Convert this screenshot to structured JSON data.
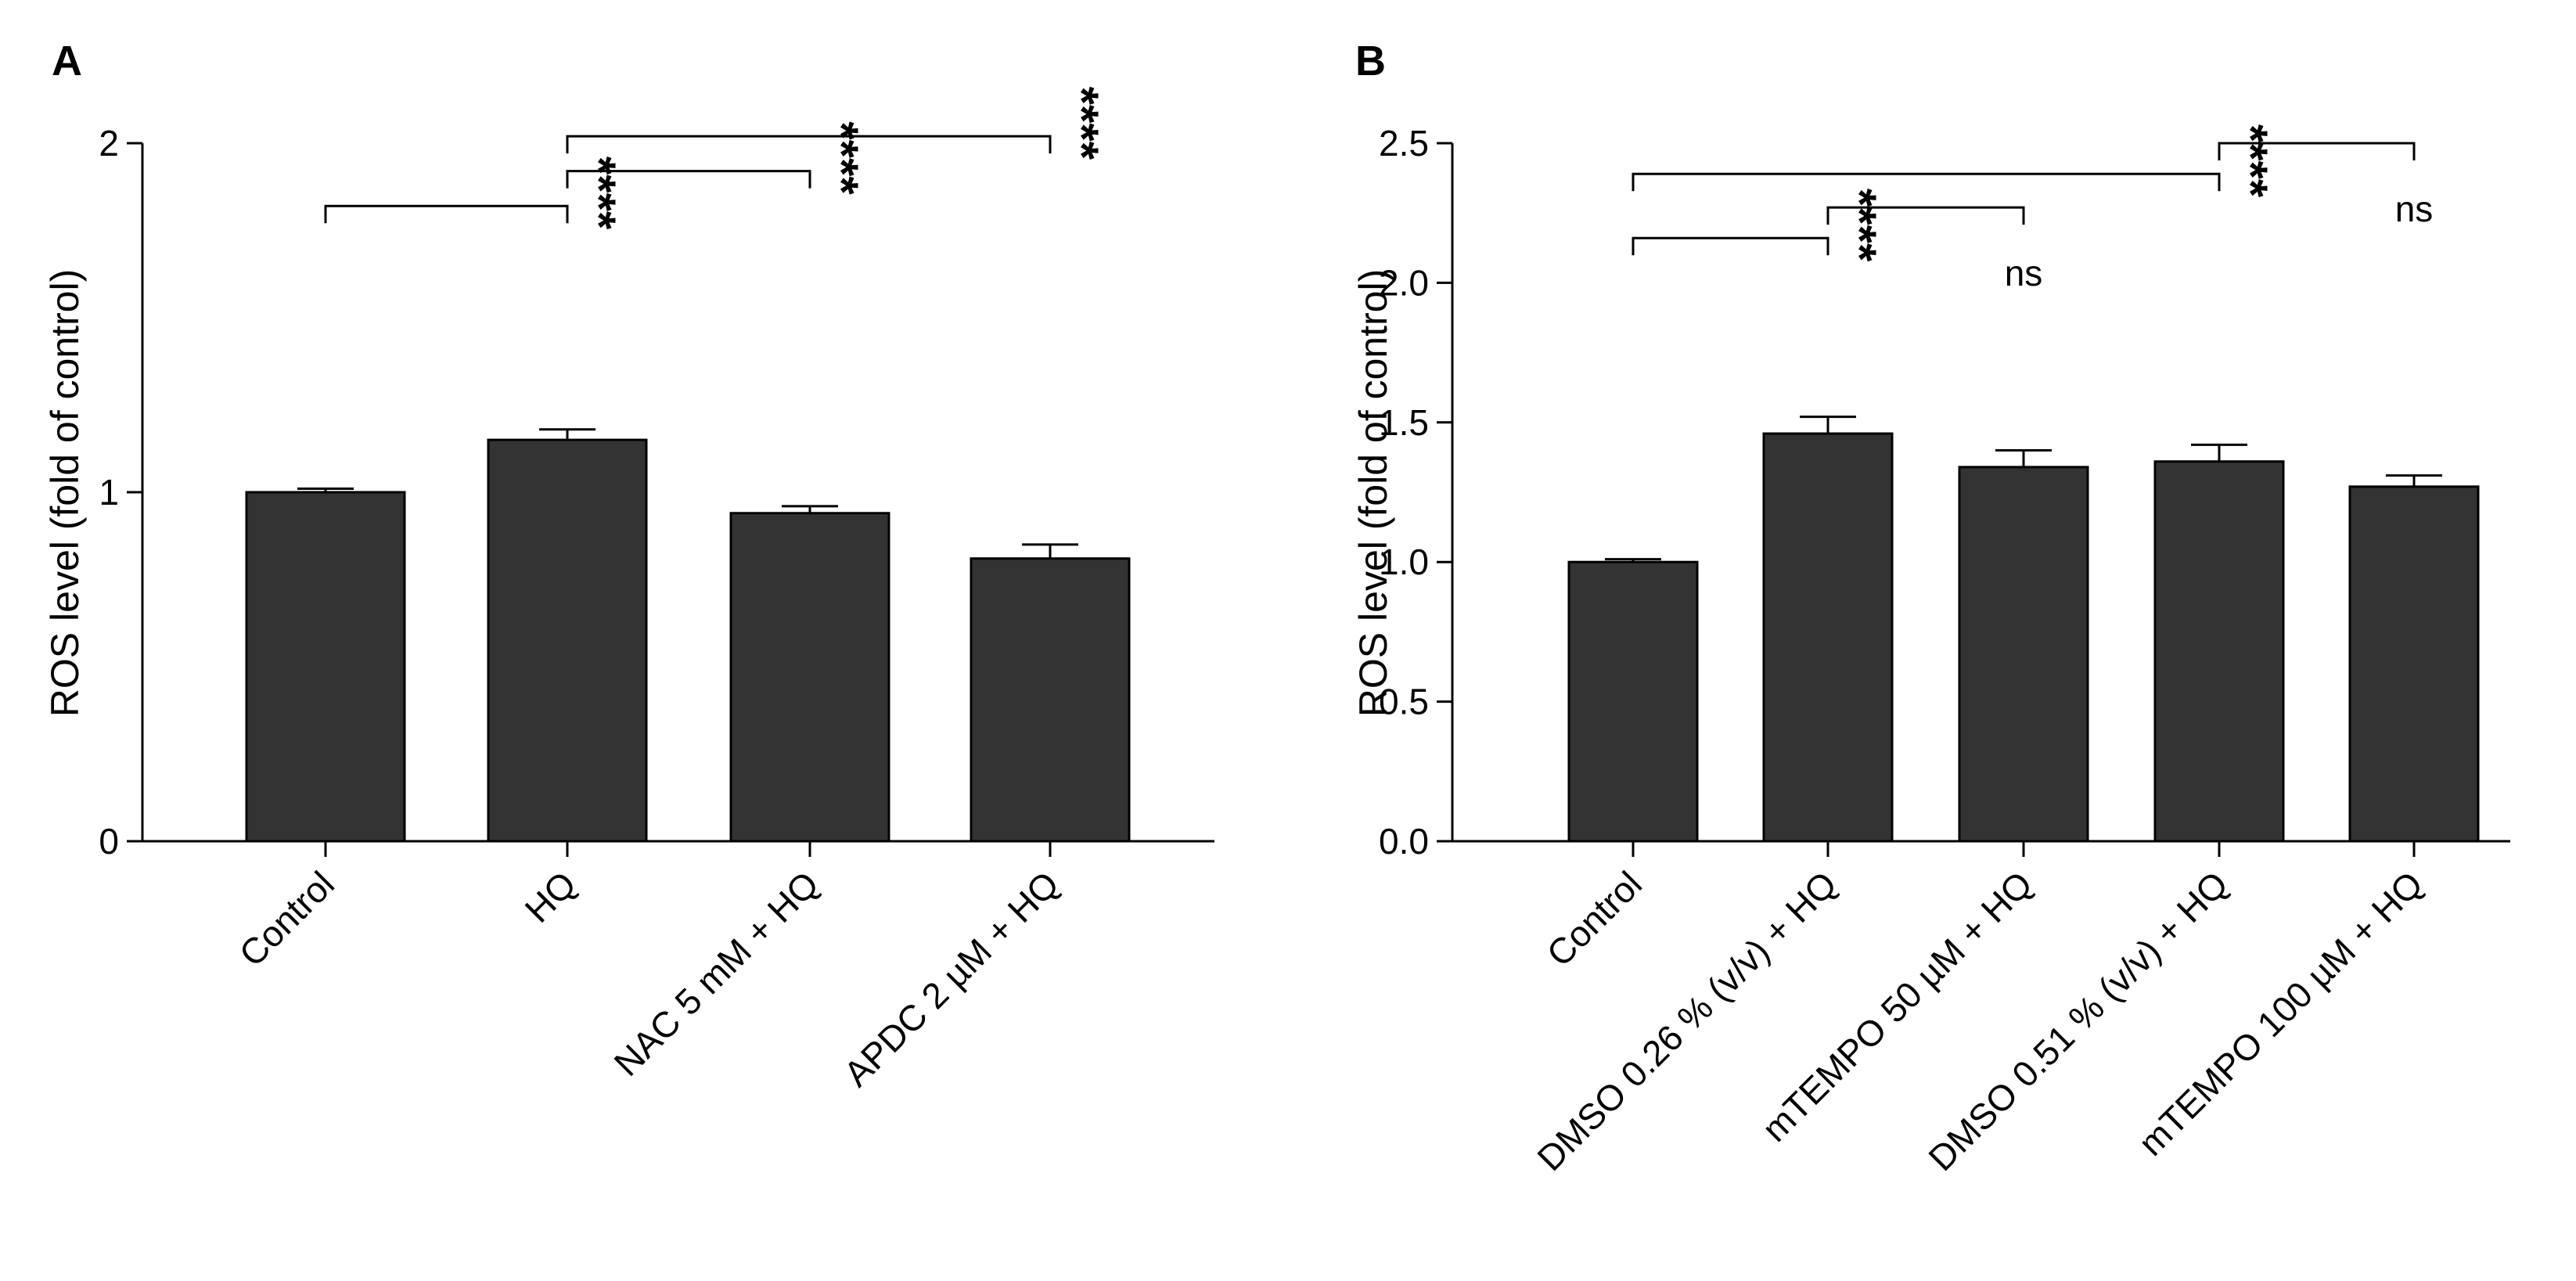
{
  "chart_data": [
    {
      "type": "bar",
      "panel": "A",
      "ylabel": "ROS level (fold of control)",
      "ylim": [
        0,
        2
      ],
      "yticks": [
        0,
        1,
        2
      ],
      "ytick_labels": [
        "0",
        "1",
        "2"
      ],
      "categories": [
        "Control",
        "HQ",
        "NAC 5 mM + HQ",
        "APDC 2 µM + HQ"
      ],
      "values": [
        1.0,
        1.15,
        0.94,
        0.81
      ],
      "errors": [
        0.01,
        0.03,
        0.02,
        0.04
      ],
      "bar_color": "#333333",
      "comparisons": [
        {
          "from": 0,
          "to": 1,
          "label": "****",
          "kind": "stars",
          "y": 1.82
        },
        {
          "from": 1,
          "to": 2,
          "label": "****",
          "kind": "stars",
          "y": 1.92
        },
        {
          "from": 1,
          "to": 3,
          "label": "****",
          "kind": "stars",
          "y": 2.02
        }
      ]
    },
    {
      "type": "bar",
      "panel": "B",
      "ylabel": "ROS level (fold of control)",
      "ylim": [
        0,
        2.5
      ],
      "yticks": [
        0,
        0.5,
        1.0,
        1.5,
        2.0,
        2.5
      ],
      "ytick_labels": [
        "0.0",
        "0.5",
        "1.0",
        "1.5",
        "2.0",
        "2.5"
      ],
      "categories": [
        "Control",
        "DMSO 0.26 % (v/v) + HQ",
        "mTEMPO 50 µM + HQ",
        "DMSO 0.51 % (v/v) + HQ",
        "mTEMPO 100 µM + HQ"
      ],
      "values": [
        1.0,
        1.46,
        1.34,
        1.36,
        1.27
      ],
      "errors": [
        0.01,
        0.06,
        0.06,
        0.06,
        0.04
      ],
      "bar_color": "#333333",
      "comparisons": [
        {
          "from": 0,
          "to": 1,
          "label": "****",
          "kind": "stars",
          "y": 2.16
        },
        {
          "from": 1,
          "to": 2,
          "label": "ns",
          "kind": "text",
          "y": 2.27
        },
        {
          "from": 0,
          "to": 3,
          "label": "****",
          "kind": "stars",
          "y": 2.39
        },
        {
          "from": 3,
          "to": 4,
          "label": "ns",
          "kind": "text",
          "y": 2.5
        }
      ]
    }
  ]
}
